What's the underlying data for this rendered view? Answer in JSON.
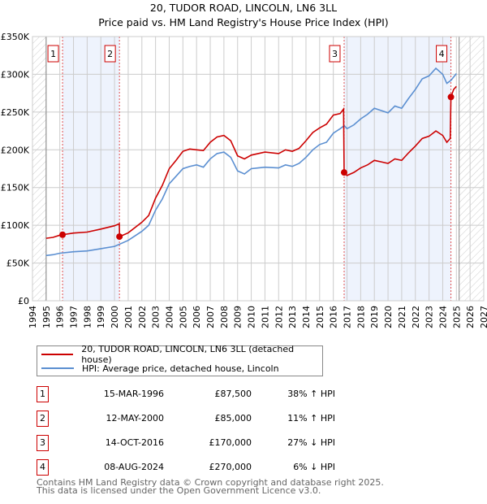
{
  "title": "20, TUDOR ROAD, LINCOLN, LN6 3LL",
  "subtitle": "Price paid vs. HM Land Registry's House Price Index (HPI)",
  "chart_data": {
    "type": "line",
    "title": "20, TUDOR ROAD, LINCOLN, LN6 3LL — Price paid vs. HM Land Registry's House Price Index (HPI)",
    "xlim": [
      1994,
      2027
    ],
    "ylim": [
      0,
      350000
    ],
    "x_ticks": [
      "1994",
      "1995",
      "1996",
      "1997",
      "1998",
      "1999",
      "2000",
      "2001",
      "2002",
      "2003",
      "2004",
      "2005",
      "2006",
      "2007",
      "2008",
      "2009",
      "2010",
      "2011",
      "2012",
      "2013",
      "2014",
      "2015",
      "2016",
      "2017",
      "2018",
      "2019",
      "2020",
      "2021",
      "2022",
      "2023",
      "2024",
      "2025",
      "2026",
      "2027"
    ],
    "y_ticks": [
      {
        "v": 0,
        "label": "£0"
      },
      {
        "v": 50000,
        "label": "£50K"
      },
      {
        "v": 100000,
        "label": "£100K"
      },
      {
        "v": 150000,
        "label": "£150K"
      },
      {
        "v": 200000,
        "label": "£200K"
      },
      {
        "v": 250000,
        "label": "£250K"
      },
      {
        "v": 300000,
        "label": "£300K"
      },
      {
        "v": 350000,
        "label": "£350K"
      }
    ],
    "grid": true,
    "hatched_ranges": [
      [
        1994,
        1995
      ],
      [
        2025.2,
        2027
      ]
    ],
    "shaded_ranges": [
      [
        1996.2,
        2000.36
      ],
      [
        2016.79,
        2024.6
      ]
    ],
    "series": [
      {
        "name": "20, TUDOR ROAD, LINCOLN, LN6 3LL (detached house)",
        "color": "#cc0000",
        "x": [
          1995,
          1995.5,
          1996,
          1996.2,
          1997,
          1998,
          1999,
          2000,
          2000.35,
          2000.37,
          2000.5,
          2001,
          2002,
          2002.5,
          2003,
          2003.5,
          2004,
          2004.5,
          2005,
          2005.5,
          2006,
          2006.5,
          2007,
          2007.5,
          2008,
          2008.5,
          2009,
          2009.5,
          2010,
          2010.5,
          2011,
          2012,
          2012.5,
          2013,
          2013.5,
          2014,
          2014.5,
          2015,
          2015.5,
          2016,
          2016.5,
          2016.75,
          2016.79,
          2017,
          2017.5,
          2018,
          2018.5,
          2019,
          2019.5,
          2020,
          2020.5,
          2021,
          2021.5,
          2022,
          2022.5,
          2023,
          2023.5,
          2024,
          2024.3,
          2024.55,
          2024.6,
          2024.8,
          2025
        ],
        "y": [
          82800,
          84000,
          86900,
          87500,
          89700,
          91000,
          95000,
          99400,
          102000,
          85000,
          86000,
          90000,
          104000,
          113000,
          136000,
          153000,
          175000,
          186000,
          198000,
          201000,
          200000,
          199000,
          210000,
          217000,
          219000,
          212000,
          192000,
          188000,
          193000,
          195000,
          197000,
          195000,
          200000,
          198000,
          202000,
          212000,
          223000,
          229000,
          234000,
          246000,
          248000,
          254000,
          170000,
          166000,
          170000,
          176000,
          180000,
          186000,
          184000,
          182000,
          188000,
          186000,
          196000,
          205000,
          215000,
          218000,
          225000,
          219000,
          210000,
          215000,
          270000,
          280000,
          284000
        ]
      },
      {
        "name": "HPI: Average price, detached house, Lincoln",
        "color": "#5b8fd1",
        "x": [
          1995,
          1995.5,
          1996,
          1997,
          1998,
          1999,
          2000,
          2000.5,
          2001,
          2002,
          2002.5,
          2003,
          2003.5,
          2004,
          2004.5,
          2005,
          2005.5,
          2006,
          2006.5,
          2007,
          2007.5,
          2008,
          2008.5,
          2009,
          2009.5,
          2010,
          2010.5,
          2011,
          2012,
          2012.5,
          2013,
          2013.5,
          2014,
          2014.5,
          2015,
          2015.5,
          2016,
          2016.5,
          2016.8,
          2017,
          2017.5,
          2018,
          2018.5,
          2019,
          2019.5,
          2020,
          2020.5,
          2021,
          2021.5,
          2022,
          2022.5,
          2023,
          2023.5,
          2024,
          2024.3,
          2024.6,
          2025
        ],
        "y": [
          60000,
          61000,
          63000,
          65000,
          66000,
          69000,
          72000,
          76000,
          80000,
          92000,
          100000,
          120000,
          135000,
          155000,
          165000,
          175000,
          178000,
          180000,
          177000,
          188000,
          195000,
          197000,
          190000,
          172000,
          168000,
          175000,
          176000,
          177000,
          176000,
          180000,
          178000,
          182000,
          190000,
          200000,
          207000,
          210000,
          222000,
          228000,
          232000,
          228000,
          233000,
          241000,
          247000,
          255000,
          252000,
          249000,
          258000,
          255000,
          268000,
          280000,
          294000,
          298000,
          308000,
          300000,
          288000,
          292000,
          301000
        ]
      }
    ],
    "sales": [
      {
        "n": "1",
        "x": 1996.2,
        "price": 87500
      },
      {
        "n": "2",
        "x": 2000.36,
        "price": 85000
      },
      {
        "n": "3",
        "x": 2016.79,
        "price": 170000
      },
      {
        "n": "4",
        "x": 2024.6,
        "price": 270000
      }
    ],
    "legend_placement": "below"
  },
  "legend": [
    {
      "label": "20, TUDOR ROAD, LINCOLN, LN6 3LL (detached house)",
      "color": "#cc0000"
    },
    {
      "label": "HPI: Average price, detached house, Lincoln",
      "color": "#5b8fd1"
    }
  ],
  "transactions": [
    {
      "n": "1",
      "date": "15-MAR-1996",
      "price": "£87,500",
      "hpi": "38% ↑ HPI"
    },
    {
      "n": "2",
      "date": "12-MAY-2000",
      "price": "£85,000",
      "hpi": "11% ↑ HPI"
    },
    {
      "n": "3",
      "date": "14-OCT-2016",
      "price": "£170,000",
      "hpi": "27% ↓ HPI"
    },
    {
      "n": "4",
      "date": "08-AUG-2024",
      "price": "£270,000",
      "hpi": "6% ↓ HPI"
    }
  ],
  "footer": [
    "Contains HM Land Registry data © Crown copyright and database right 2025.",
    "This data is licensed under the Open Government Licence v3.0."
  ]
}
